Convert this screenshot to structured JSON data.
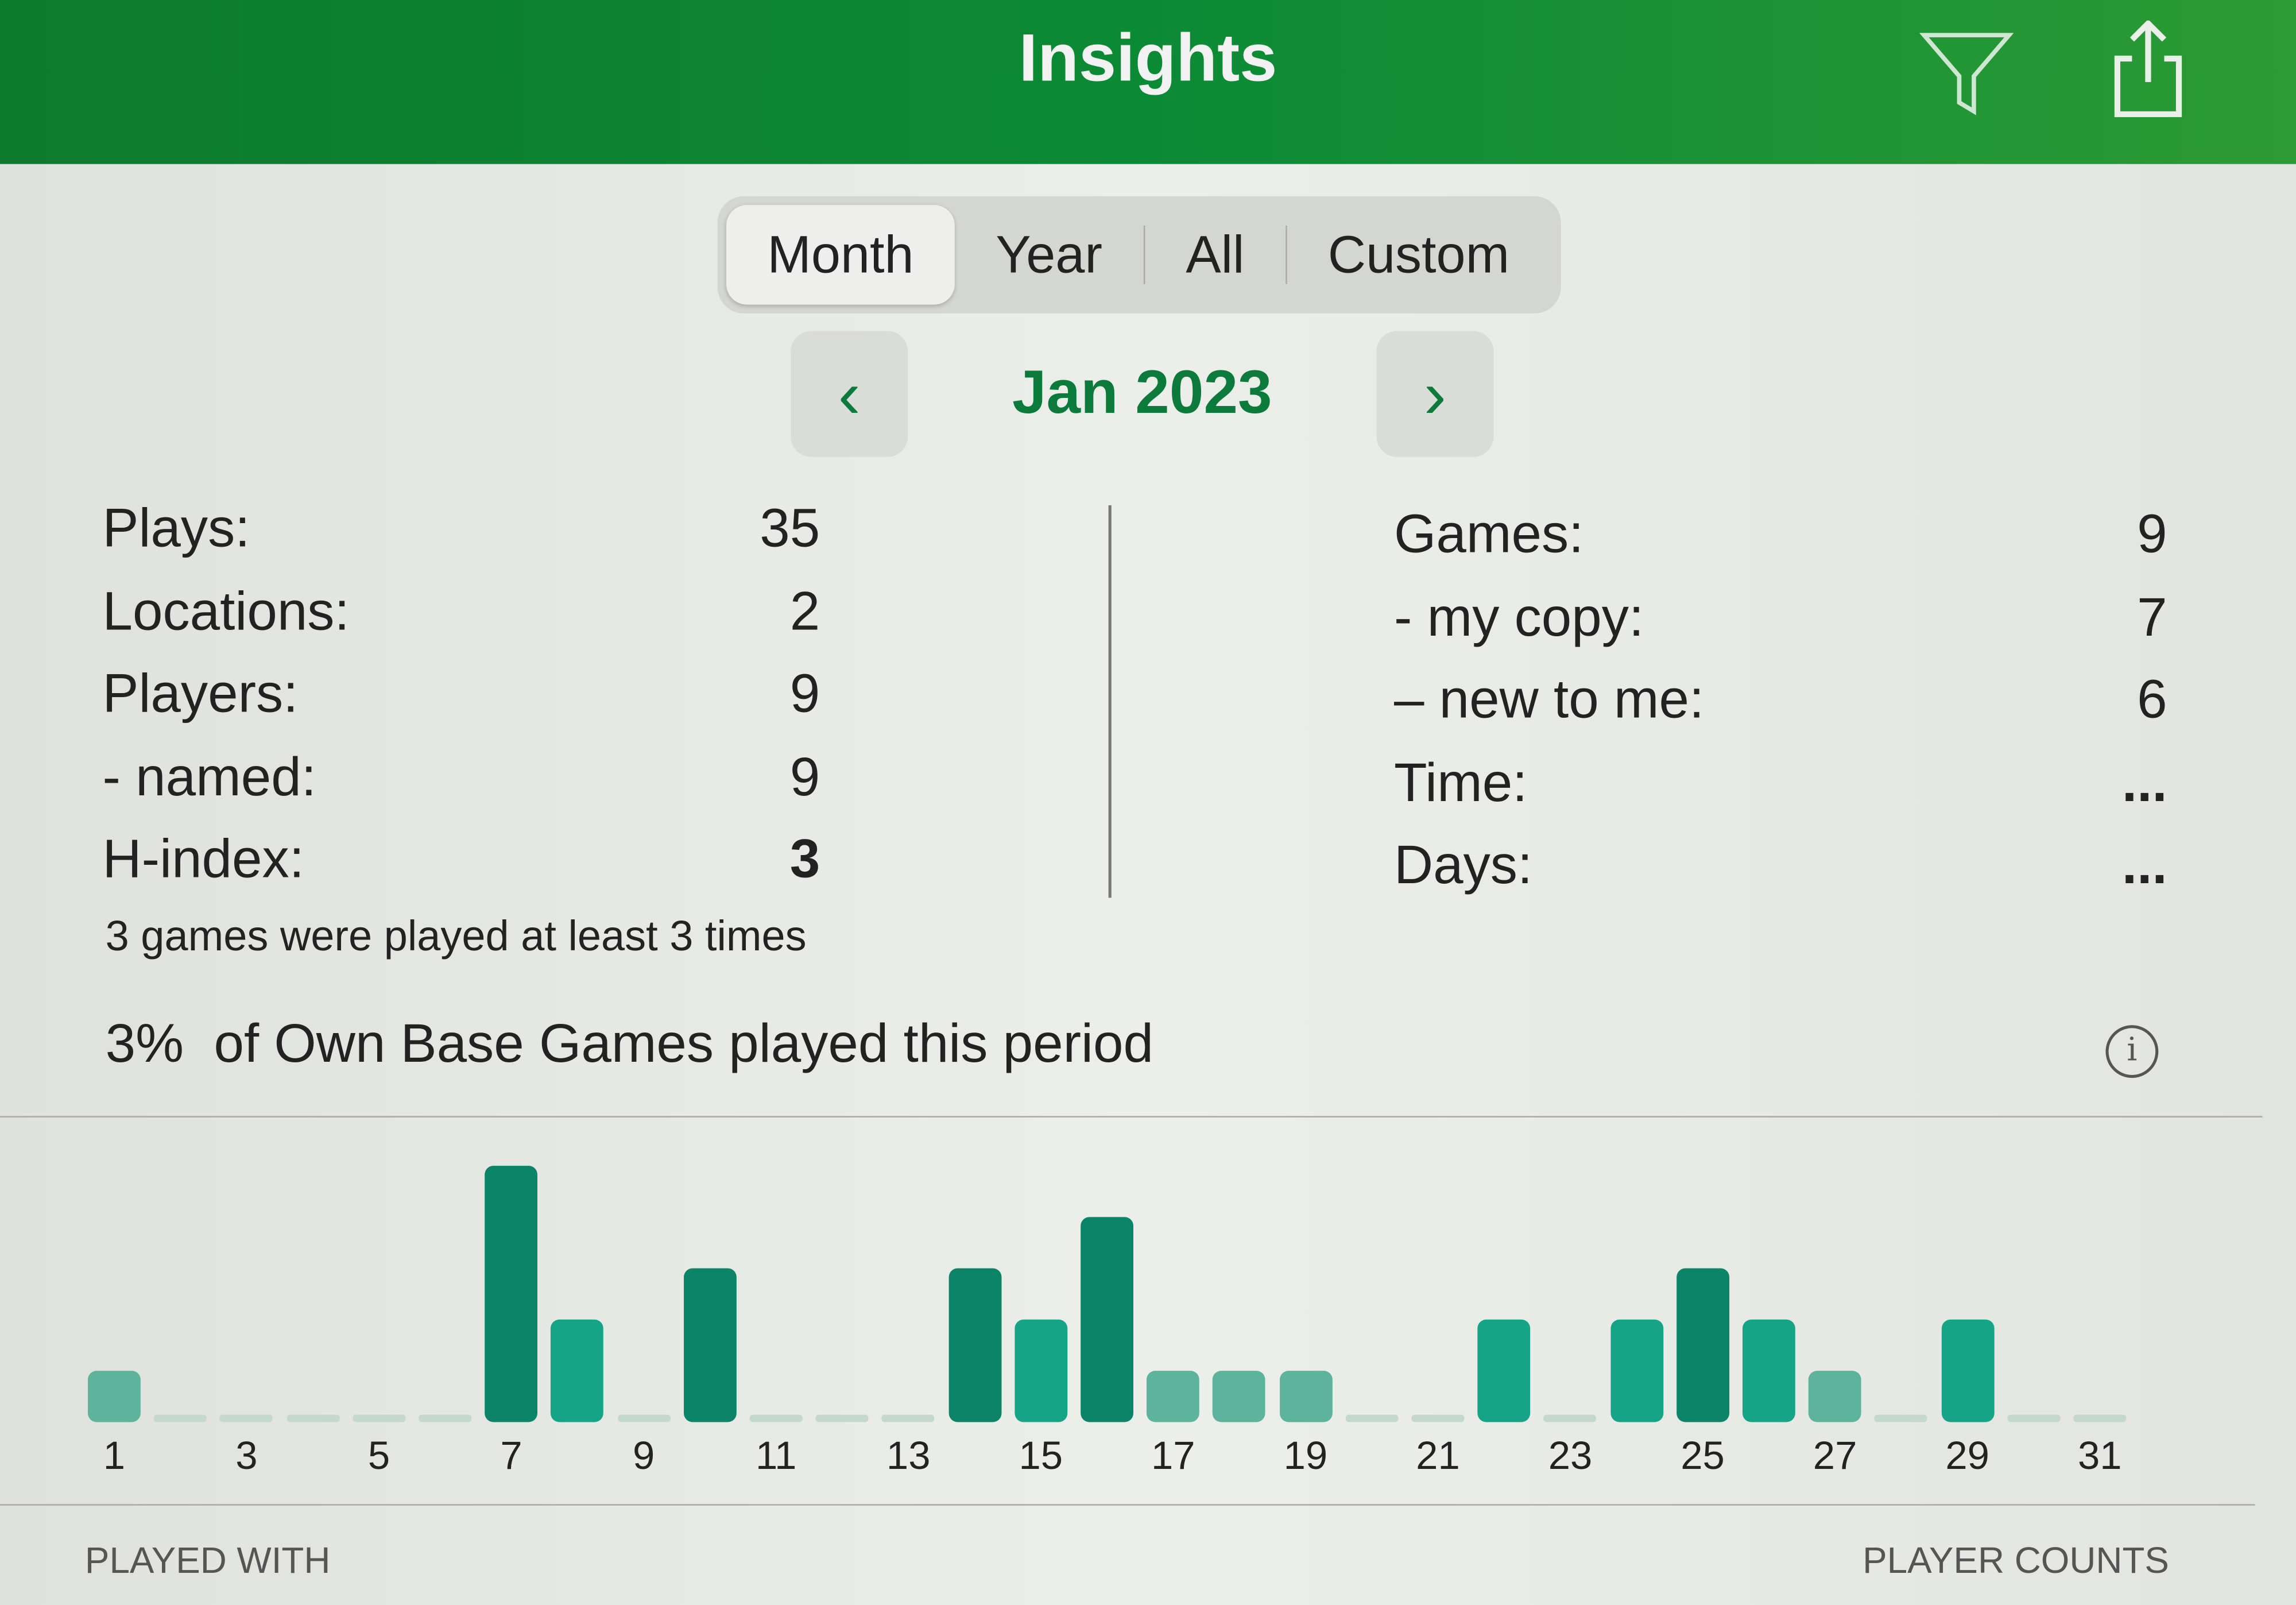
{
  "nav": {
    "title": "Insights",
    "filter_icon": "filter-icon",
    "share_icon": "share-icon"
  },
  "segments": [
    "Month",
    "Year",
    "All",
    "Custom"
  ],
  "selected_segment": "Month",
  "period": {
    "label": "Jan 2023",
    "prev": "‹",
    "next": "›"
  },
  "left_stats": [
    {
      "label": "Plays:",
      "value": "35"
    },
    {
      "label": "Locations:",
      "value": "2"
    },
    {
      "label": "Players:",
      "value": "9"
    },
    {
      "label": "- named:",
      "value": "9"
    },
    {
      "label": "H-index:",
      "value": "3"
    }
  ],
  "right_stats": [
    {
      "label": "Games:",
      "value": "9"
    },
    {
      "label": "- my copy:",
      "value": "7"
    },
    {
      "label": "– new to me:",
      "value": "6"
    },
    {
      "label": "Time:",
      "value": "..."
    },
    {
      "label": "Days:",
      "value": "..."
    }
  ],
  "h_index_note": "3 games were played at least 3 times",
  "own_games": {
    "percent": "3%",
    "text": "of Own Base Games played this period"
  },
  "chart_data": {
    "type": "bar",
    "categories": [
      1,
      2,
      3,
      4,
      5,
      6,
      7,
      8,
      9,
      10,
      11,
      12,
      13,
      14,
      15,
      16,
      17,
      18,
      19,
      20,
      21,
      22,
      23,
      24,
      25,
      26,
      27,
      28,
      29,
      30,
      31
    ],
    "values": [
      1,
      0,
      0,
      0,
      0,
      0,
      5,
      2,
      0,
      3,
      0,
      0,
      0,
      3,
      2,
      4,
      1,
      1,
      1,
      0,
      0,
      2,
      0,
      2,
      3,
      2,
      1,
      0,
      2,
      0,
      0
    ],
    "tick_labels": [
      "1",
      "3",
      "5",
      "7",
      "9",
      "11",
      "13",
      "15",
      "17",
      "19",
      "21",
      "23",
      "25",
      "27",
      "29",
      "31"
    ],
    "colors": {
      "low": "#5db39c",
      "mid": "#16a487",
      "high": "#0b8468",
      "empty": "#c3d9cf"
    }
  },
  "footer": {
    "left": "PLAYED WITH",
    "right": "PLAYER COUNTS"
  }
}
